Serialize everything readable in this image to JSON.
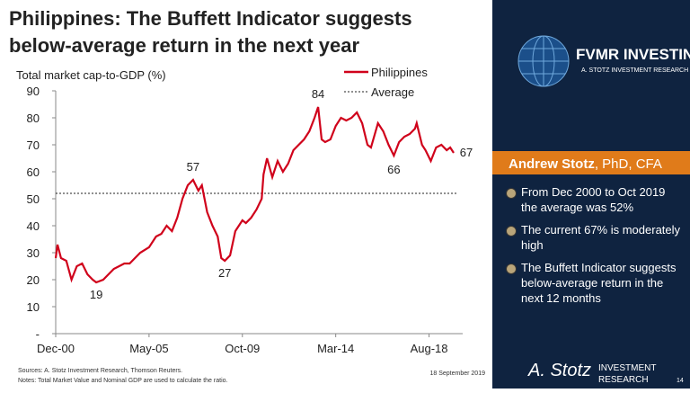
{
  "chart_data": {
    "type": "line",
    "title": "Philippines: The Buffett Indicator suggests below-average return in the next year",
    "y_label": "Total market cap-to-GDP (%)",
    "x": [
      "2000-12",
      "2001-01",
      "2001-03",
      "2001-06",
      "2001-09",
      "2001-12",
      "2002-03",
      "2002-06",
      "2002-09",
      "2002-11",
      "2003-03",
      "2003-06",
      "2003-09",
      "2003-12",
      "2004-03",
      "2004-06",
      "2004-09",
      "2004-12",
      "2005-05",
      "2005-09",
      "2005-12",
      "2006-03",
      "2006-06",
      "2006-09",
      "2006-12",
      "2007-03",
      "2007-06",
      "2007-09",
      "2007-11",
      "2008-02",
      "2008-05",
      "2008-08",
      "2008-10",
      "2008-12",
      "2009-03",
      "2009-06",
      "2009-10",
      "2009-12",
      "2010-03",
      "2010-06",
      "2010-09",
      "2010-10",
      "2010-12",
      "2011-03",
      "2011-06",
      "2011-09",
      "2011-12",
      "2012-03",
      "2012-06",
      "2012-09",
      "2012-12",
      "2013-03",
      "2013-05",
      "2013-07",
      "2013-09",
      "2013-12",
      "2014-03",
      "2014-06",
      "2014-09",
      "2014-12",
      "2015-03",
      "2015-06",
      "2015-09",
      "2015-11",
      "2016-03",
      "2016-06",
      "2016-09",
      "2016-12",
      "2017-03",
      "2017-06",
      "2017-09",
      "2017-12",
      "2018-01",
      "2018-04",
      "2018-06",
      "2018-09",
      "2018-12",
      "2019-03",
      "2019-06",
      "2019-08",
      "2019-10"
    ],
    "series": [
      {
        "name": "Philippines",
        "color": "#d0021b",
        "values": [
          28,
          33,
          28,
          27,
          20,
          25,
          26,
          22,
          20,
          19,
          20,
          22,
          24,
          25,
          26,
          26,
          28,
          30,
          32,
          36,
          37,
          40,
          38,
          43,
          50,
          55,
          57,
          53,
          55,
          45,
          40,
          36,
          28,
          27,
          29,
          38,
          42,
          41,
          43,
          46,
          50,
          59,
          65,
          58,
          64,
          60,
          63,
          68,
          70,
          72,
          75,
          80,
          84,
          72,
          71,
          72,
          77,
          80,
          79,
          80,
          82,
          78,
          70,
          69,
          78,
          75,
          70,
          66,
          71,
          73,
          74,
          76,
          78,
          70,
          68,
          64,
          69,
          70,
          68,
          69,
          67
        ]
      }
    ],
    "average": {
      "name": "Average",
      "value": 52,
      "color": "#222222"
    },
    "annotations": [
      {
        "x": "2002-11",
        "y": 19
      },
      {
        "x": "2007-06",
        "y": 57
      },
      {
        "x": "2008-12",
        "y": 27
      },
      {
        "x": "2013-05",
        "y": 84
      },
      {
        "x": "2016-12",
        "y": 66
      },
      {
        "x": "2019-10",
        "y": 67
      }
    ],
    "xlim": [
      "2000-12",
      "2019-10"
    ],
    "xticks": [
      {
        "value": "2000-12",
        "label": "Dec-00"
      },
      {
        "value": "2005-05",
        "label": "May-05"
      },
      {
        "value": "2009-10",
        "label": "Oct-09"
      },
      {
        "value": "2014-03",
        "label": "Mar-14"
      },
      {
        "value": "2018-08",
        "label": "Aug-18"
      }
    ],
    "ylim": [
      0,
      90
    ],
    "yticks": [
      {
        "value": 0,
        "label": "-"
      },
      10,
      20,
      30,
      40,
      50,
      60,
      70,
      80,
      90
    ]
  },
  "panel": {
    "brand": "FVMR INVESTING",
    "brand_sub": "A. STOTZ INVESTMENT RESEARCH",
    "author": "Andrew Stotz",
    "credentials": ", PhD, CFA",
    "bullets": [
      "From Dec 2000 to Oct 2019 the average was 52%",
      "The current 67% is moderately high",
      "The Buffett Indicator suggests below-average return in the next 12 months"
    ],
    "signature": "A. Stotz",
    "sig_sub1": "INVESTMENT",
    "sig_sub2": "RESEARCH",
    "page": "14"
  },
  "footer": {
    "sources": "Sources: A. Stotz Investment Research, Thomson Reuters.",
    "notes": "Notes: Total Market Value and Nominal GDP are used to calculate the ratio.",
    "date": "18 September 2019"
  }
}
